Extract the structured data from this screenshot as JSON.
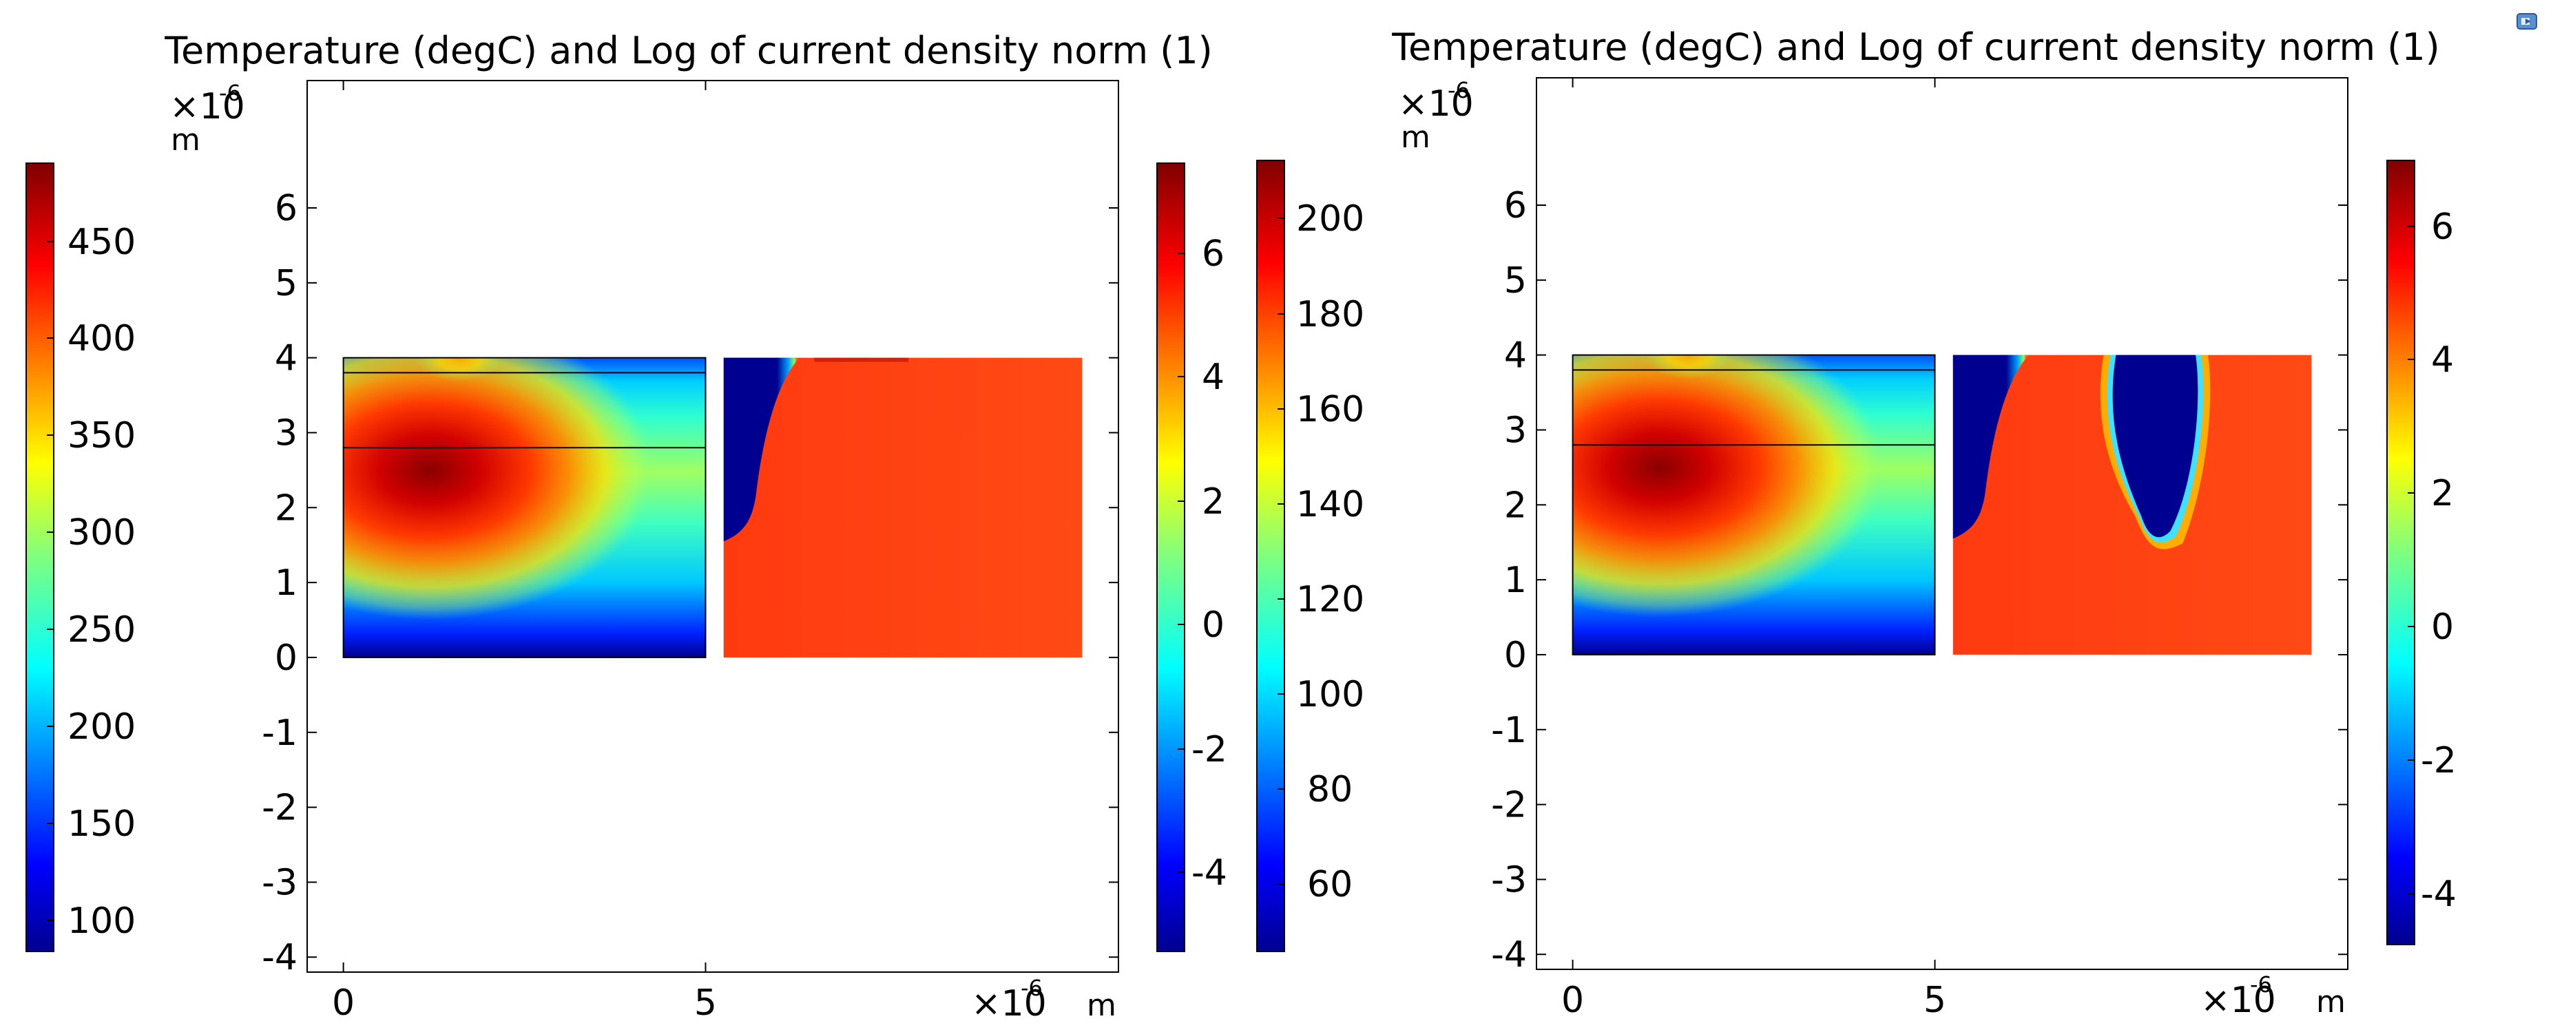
{
  "chart_data": [
    {
      "type": "heatmap",
      "title": "Temperature (degC) and Log of current density norm (1)",
      "x_ticks": [
        "0",
        "5"
      ],
      "y_ticks": [
        "6",
        "5",
        "4",
        "3",
        "2",
        "1",
        "0",
        "-1",
        "-2",
        "-3",
        "-4"
      ],
      "axis_unit": "m",
      "axis_scale_base": "×10",
      "axis_scale_exponent": "-6",
      "xlim": [
        -0.5,
        10.7
      ],
      "ylim": [
        -4.2,
        7.7
      ],
      "domain": {
        "x": [
          0,
          10.2
        ],
        "y": [
          0,
          4
        ]
      },
      "temperature_region": {
        "x": [
          0,
          5
        ],
        "y": [
          0,
          4
        ],
        "hotspot": {
          "x": 1.2,
          "y": 2.5
        },
        "layer_lines_y": [
          3.8,
          2.8
        ]
      },
      "current_region": {
        "x": [
          5.25,
          10.2
        ],
        "y": [
          0,
          4
        ],
        "low_regions": [
          "left edge band x 5.25-6.3"
        ]
      },
      "colorbars": [
        {
          "name": "Temperature (degC)",
          "position": "left",
          "range": [
            85,
            490
          ],
          "ticks": [
            "450",
            "400",
            "350",
            "300",
            "250",
            "200",
            "150",
            "100"
          ]
        },
        {
          "name": "Log of current density norm",
          "position": "right-inner",
          "range": [
            -5,
            7.3
          ],
          "ticks": [
            "6",
            "4",
            "2",
            "0",
            "-2",
            "-4"
          ]
        },
        {
          "name": "Temperature (degC)",
          "position": "right-outer",
          "range": [
            45,
            212
          ],
          "ticks": [
            "200",
            "180",
            "160",
            "140",
            "120",
            "100",
            "80",
            "60"
          ]
        }
      ]
    },
    {
      "type": "heatmap",
      "title": "Temperature (degC) and Log of current density norm (1)",
      "x_ticks": [
        "0",
        "5"
      ],
      "y_ticks": [
        "6",
        "5",
        "4",
        "3",
        "2",
        "1",
        "0",
        "-1",
        "-2",
        "-3",
        "-4"
      ],
      "axis_unit": "m",
      "axis_scale_base": "×10",
      "axis_scale_exponent": "-6",
      "xlim": [
        -0.5,
        10.7
      ],
      "ylim": [
        -4.2,
        7.7
      ],
      "domain": {
        "x": [
          0,
          10.2
        ],
        "y": [
          0,
          4
        ]
      },
      "temperature_region": {
        "x": [
          0,
          5
        ],
        "y": [
          0,
          4
        ],
        "hotspot": {
          "x": 1.2,
          "y": 2.5
        },
        "layer_lines_y": [
          3.8,
          2.8
        ]
      },
      "current_region": {
        "x": [
          5.25,
          10.2
        ],
        "y": [
          0,
          4
        ],
        "low_regions": [
          "left edge band x 5.25-6.3",
          "vertical pocket x 7.5-8.5, y 1.6-4"
        ]
      },
      "colorbars": [
        {
          "name": "Log of current density norm",
          "position": "right",
          "range": [
            -5,
            7
          ],
          "ticks": [
            "6",
            "4",
            "2",
            "0",
            "-2",
            "-4"
          ]
        }
      ]
    }
  ],
  "colors": {
    "jet": [
      "#00008f",
      "#0000ff",
      "#00ffff",
      "#ffff00",
      "#ff0000",
      "#800000"
    ],
    "current_high": "#ff3c10",
    "current_low": "#000090"
  },
  "icons": {
    "corner_icon": "window-restore-icon"
  }
}
